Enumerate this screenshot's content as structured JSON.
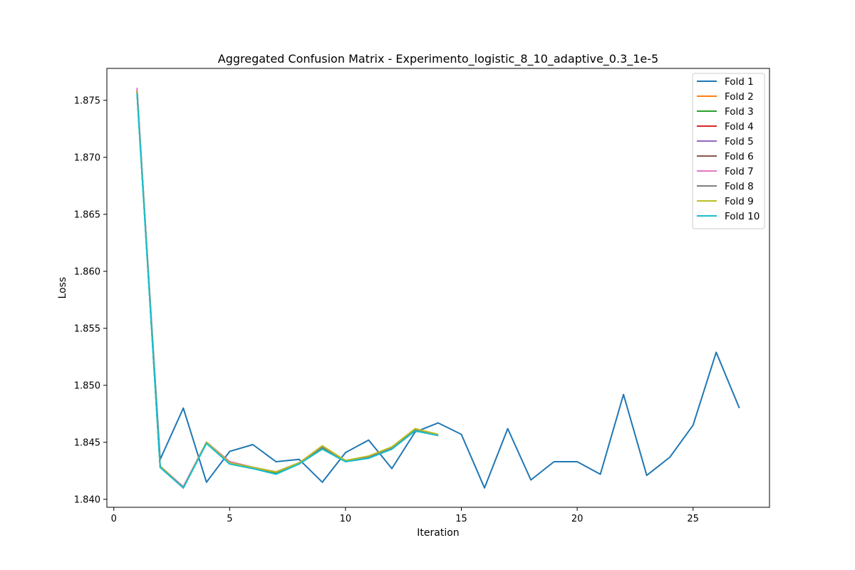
{
  "chart_data": {
    "type": "line",
    "title": "Aggregated Confusion Matrix - Experimento_logistic_8_10_adaptive_0.3_1e-5",
    "xlabel": "Iteration",
    "ylabel": "Loss",
    "xlim": [
      -0.3,
      28.3
    ],
    "ylim": [
      1.8393,
      1.8778
    ],
    "xticks": [
      0,
      5,
      10,
      15,
      20,
      25
    ],
    "yticks": [
      1.84,
      1.845,
      1.85,
      1.855,
      1.86,
      1.865,
      1.87,
      1.875
    ],
    "grid": false,
    "legend_position": "top-right",
    "series": [
      {
        "name": "Fold 1",
        "color": "#1f77b4",
        "x": [
          1,
          2,
          3,
          4,
          5,
          6,
          7,
          8,
          9,
          10,
          11,
          12,
          13,
          14,
          15,
          16,
          17,
          18,
          19,
          20,
          21,
          22,
          23,
          24,
          25,
          26,
          27
        ],
        "y": [
          1.8758,
          1.8435,
          1.848,
          1.8415,
          1.8442,
          1.8448,
          1.8433,
          1.8435,
          1.8415,
          1.8441,
          1.8452,
          1.8427,
          1.8459,
          1.8467,
          1.8457,
          1.841,
          1.8462,
          1.8417,
          1.8433,
          1.8433,
          1.8422,
          1.8492,
          1.8421,
          1.8437,
          1.8465,
          1.8529,
          1.848
        ]
      },
      {
        "name": "Fold 2",
        "color": "#ff7f0e",
        "x": [
          1,
          2,
          3,
          4,
          5,
          6,
          7,
          8,
          9,
          10,
          11,
          12,
          13,
          14
        ],
        "y": [
          1.8759,
          1.8429,
          1.841,
          1.845,
          1.8433,
          1.8428,
          1.8424,
          1.8432,
          1.8446,
          1.8434,
          1.8437,
          1.8445,
          1.8461,
          1.8456
        ]
      },
      {
        "name": "Fold 3",
        "color": "#2ca02c",
        "x": [
          1,
          2,
          3,
          4,
          5,
          6,
          7,
          8,
          9,
          10,
          11,
          12,
          13,
          14
        ],
        "y": [
          1.8757,
          1.8428,
          1.841,
          1.845,
          1.8431,
          1.8427,
          1.8423,
          1.8431,
          1.8445,
          1.8434,
          1.8437,
          1.8445,
          1.846,
          1.8456
        ]
      },
      {
        "name": "Fold 4",
        "color": "#d62728",
        "x": [
          1,
          2,
          3,
          4,
          5,
          6,
          7,
          8,
          9,
          10,
          11,
          12,
          13,
          14
        ],
        "y": [
          1.8758,
          1.8429,
          1.8411,
          1.845,
          1.8433,
          1.8428,
          1.8424,
          1.8432,
          1.8446,
          1.8434,
          1.8437,
          1.8445,
          1.8461,
          1.8456
        ]
      },
      {
        "name": "Fold 5",
        "color": "#9467bd",
        "x": [
          1,
          2,
          3,
          4,
          5,
          6,
          7,
          8,
          9,
          10,
          11,
          12,
          13,
          14
        ],
        "y": [
          1.8758,
          1.8429,
          1.841,
          1.845,
          1.8432,
          1.8428,
          1.8424,
          1.8432,
          1.8446,
          1.8434,
          1.8437,
          1.8445,
          1.8461,
          1.8456
        ]
      },
      {
        "name": "Fold 6",
        "color": "#8c564b",
        "x": [
          1,
          2,
          3,
          4,
          5,
          6,
          7,
          8,
          9,
          10,
          11,
          12,
          13,
          14
        ],
        "y": [
          1.8759,
          1.8429,
          1.8411,
          1.845,
          1.8433,
          1.8428,
          1.8424,
          1.8432,
          1.8446,
          1.8434,
          1.8437,
          1.8445,
          1.8461,
          1.8456
        ]
      },
      {
        "name": "Fold 7",
        "color": "#e377c2",
        "x": [
          1,
          2,
          3,
          4,
          5,
          6,
          7,
          8,
          9,
          10,
          11,
          12,
          13,
          14
        ],
        "y": [
          1.8761,
          1.8429,
          1.8411,
          1.845,
          1.8433,
          1.8428,
          1.8424,
          1.8432,
          1.8446,
          1.8434,
          1.8437,
          1.8445,
          1.8461,
          1.8456
        ]
      },
      {
        "name": "Fold 8",
        "color": "#7f7f7f",
        "x": [
          1,
          2,
          3,
          4,
          5,
          6,
          7,
          8,
          9,
          10,
          11,
          12,
          13,
          14
        ],
        "y": [
          1.8758,
          1.8429,
          1.841,
          1.845,
          1.8432,
          1.8428,
          1.8424,
          1.8432,
          1.8446,
          1.8434,
          1.8437,
          1.8445,
          1.8461,
          1.8456
        ]
      },
      {
        "name": "Fold 9",
        "color": "#bcbd22",
        "x": [
          1,
          2,
          3,
          4,
          5,
          6,
          7,
          8,
          9,
          10,
          11,
          12,
          13,
          14
        ],
        "y": [
          1.8758,
          1.8429,
          1.841,
          1.845,
          1.8432,
          1.8428,
          1.8424,
          1.8432,
          1.8447,
          1.8434,
          1.8438,
          1.8446,
          1.8462,
          1.8457
        ]
      },
      {
        "name": "Fold 10",
        "color": "#17becf",
        "x": [
          1,
          2,
          3,
          4,
          5,
          6,
          7,
          8,
          9,
          10,
          11,
          12,
          13,
          14
        ],
        "y": [
          1.8756,
          1.8428,
          1.841,
          1.8449,
          1.8431,
          1.8427,
          1.8422,
          1.8431,
          1.8444,
          1.8433,
          1.8436,
          1.8444,
          1.846,
          1.8456
        ]
      }
    ]
  }
}
